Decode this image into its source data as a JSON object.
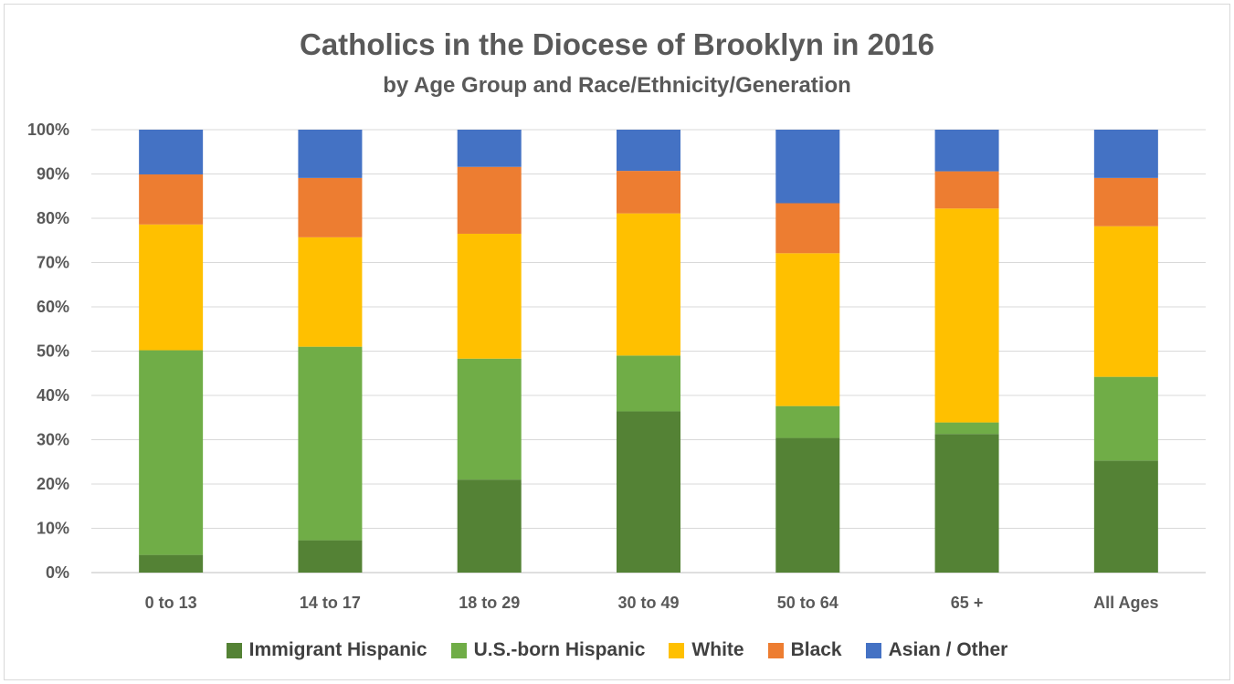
{
  "chart_data": {
    "type": "bar",
    "stacked": true,
    "title": "Catholics in the Diocese of Brooklyn in 2016",
    "subtitle": "by Age Group and Race/Ethnicity/Generation",
    "xlabel": "",
    "ylabel": "",
    "categories": [
      "0 to 13",
      "14 to 17",
      "18 to 29",
      "30 to 49",
      "50 to 64",
      "65 +",
      "All Ages"
    ],
    "y_ticks": [
      "0%",
      "10%",
      "20%",
      "30%",
      "40%",
      "50%",
      "60%",
      "70%",
      "80%",
      "90%",
      "100%"
    ],
    "ylim": [
      0,
      100
    ],
    "grid": true,
    "legend_position": "bottom",
    "series": [
      {
        "name": "Immigrant Hispanic",
        "color": "#548235",
        "values": [
          4,
          7.3,
          21,
          36.4,
          30.4,
          31.3,
          25.3
        ]
      },
      {
        "name": "U.S.-born Hispanic",
        "color": "#70ad47",
        "values": [
          46.2,
          43.7,
          27.3,
          12.6,
          7.2,
          2.6,
          18.9
        ]
      },
      {
        "name": "White",
        "color": "#ffc000",
        "values": [
          28.4,
          24.7,
          28.2,
          32.1,
          34.5,
          48.3,
          34
        ]
      },
      {
        "name": "Black",
        "color": "#ed7d31",
        "values": [
          11.3,
          13.4,
          15.1,
          9.6,
          11.3,
          8.4,
          10.9
        ]
      },
      {
        "name": "Asian / Other",
        "color": "#4472c4",
        "values": [
          10.1,
          10.9,
          8.4,
          9.3,
          16.6,
          9.4,
          10.9
        ]
      }
    ]
  }
}
